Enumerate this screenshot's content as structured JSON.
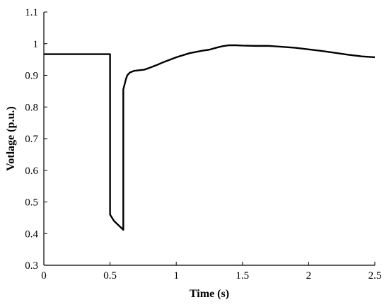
{
  "chart_data": {
    "type": "line",
    "title": "",
    "xlabel": "Time (s)",
    "ylabel": "Votlage (p.u.)",
    "xlim": [
      0,
      2.5
    ],
    "ylim": [
      0.3,
      1.1
    ],
    "xticks": [
      0,
      0.5,
      1,
      1.5,
      2,
      2.5
    ],
    "yticks": [
      0.3,
      0.4,
      0.5,
      0.6,
      0.7,
      0.8,
      0.9,
      1,
      1.1
    ],
    "xtick_labels": [
      "0",
      "0.5",
      "1",
      "1.5",
      "2",
      "2.5"
    ],
    "ytick_labels": [
      "0.3",
      "0.4",
      "0.5",
      "0.6",
      "0.7",
      "0.8",
      "0.9",
      "1",
      "1.1"
    ],
    "grid": false,
    "legend": false,
    "line_color": "#000000",
    "series": [
      {
        "x": [
          0,
          0.5,
          0.5,
          0.53,
          0.57,
          0.6,
          0.6,
          0.61,
          0.62,
          0.63,
          0.65,
          0.68,
          0.72,
          0.76,
          0.8,
          0.85,
          0.9,
          1.0,
          1.1,
          1.2,
          1.25,
          1.3,
          1.35,
          1.4,
          1.45,
          1.5,
          1.6,
          1.7,
          1.8,
          1.9,
          2.0,
          2.1,
          2.2,
          2.3,
          2.4,
          2.5
        ],
        "y": [
          0.967,
          0.967,
          0.46,
          0.44,
          0.424,
          0.412,
          0.855,
          0.872,
          0.888,
          0.9,
          0.909,
          0.914,
          0.916,
          0.918,
          0.924,
          0.932,
          0.941,
          0.957,
          0.97,
          0.978,
          0.981,
          0.987,
          0.992,
          0.995,
          0.995,
          0.994,
          0.993,
          0.993,
          0.99,
          0.987,
          0.982,
          0.977,
          0.971,
          0.965,
          0.96,
          0.957
        ]
      }
    ]
  }
}
